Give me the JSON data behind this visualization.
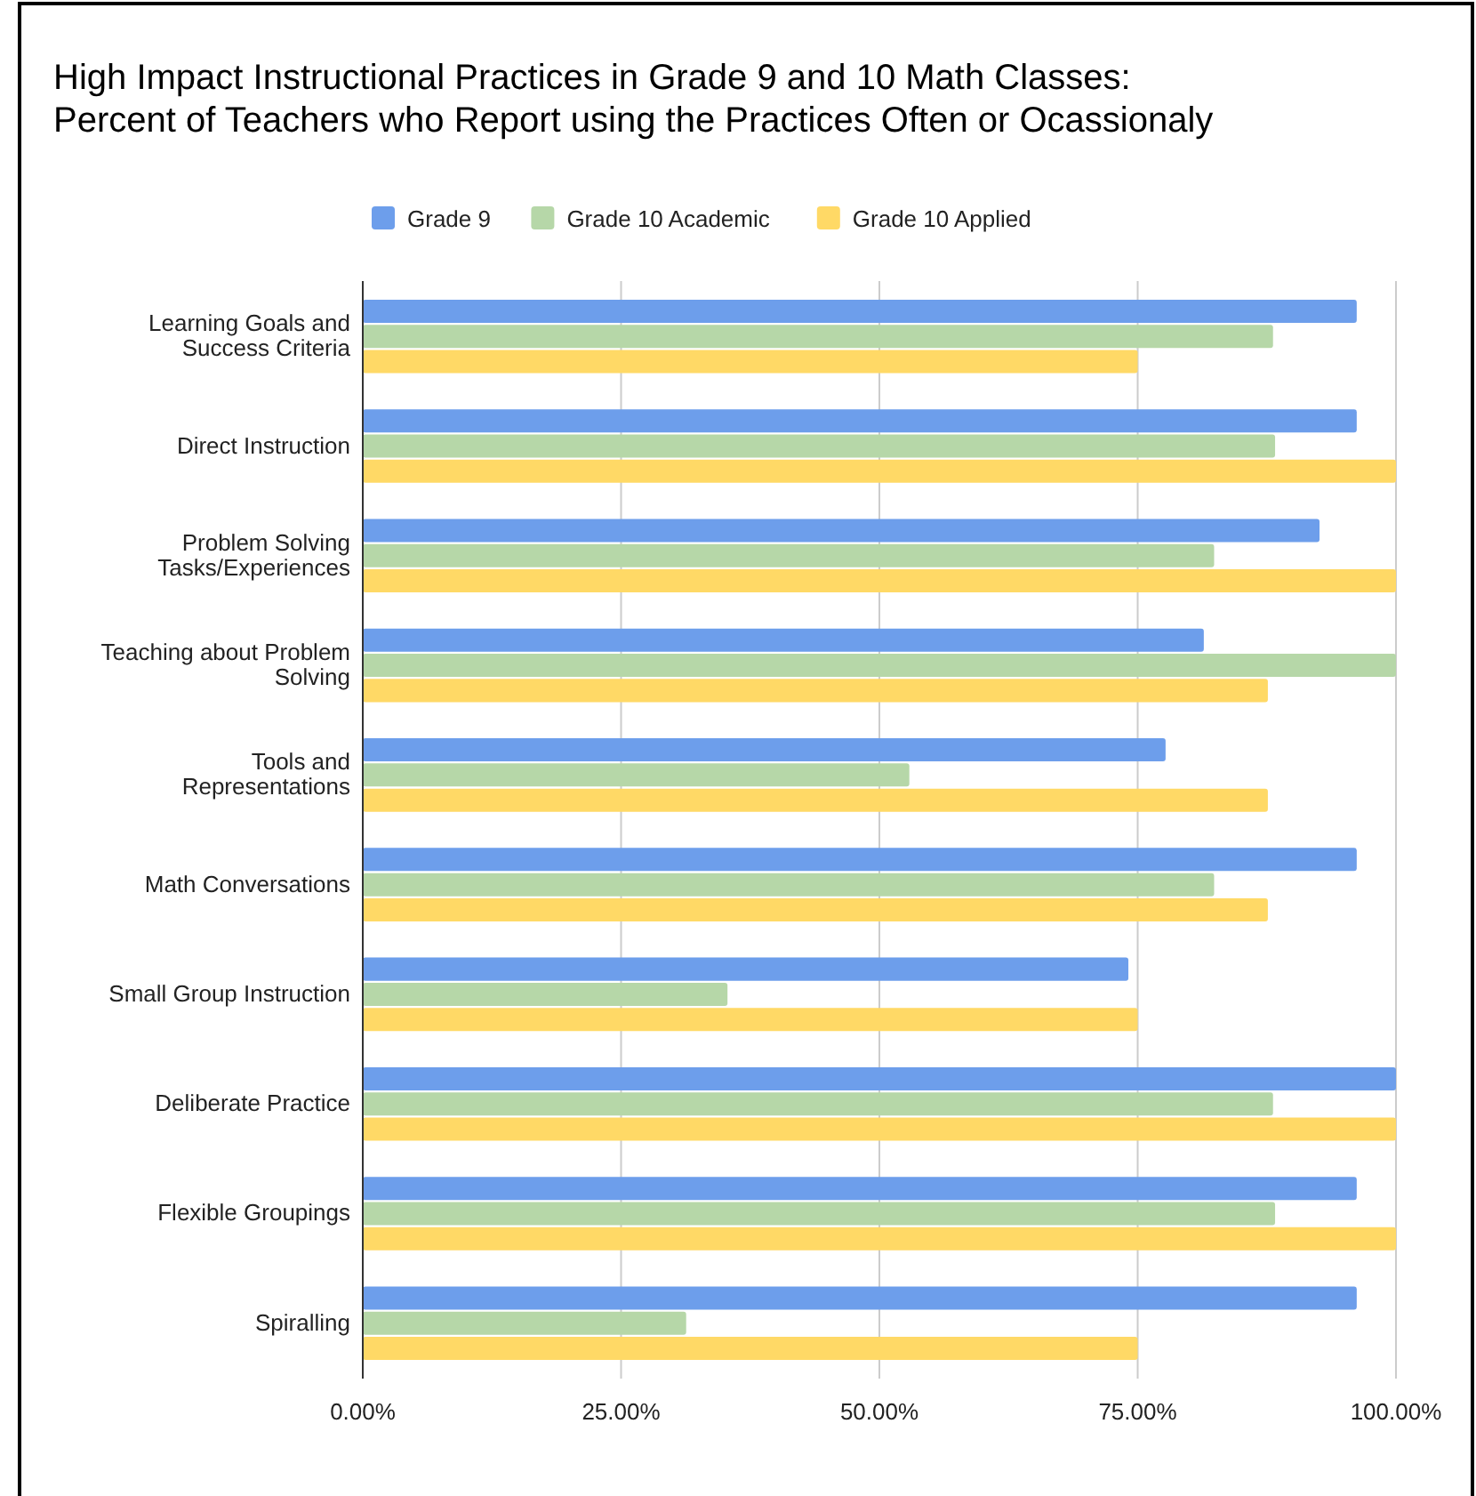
{
  "chart_data": {
    "type": "bar",
    "orientation": "horizontal",
    "title": "High Impact Instructional Practices in Grade 9 and 10 Math Classes:\nPercent of Teachers who Report using the Practices Often or Ocassionaly",
    "categories": [
      "Learning Goals and\nSuccess Criteria",
      "Direct Instruction",
      "Problem Solving\nTasks/Experiences",
      "Teaching about Problem\nSolving",
      "Tools and\nRepresentations",
      "Math Conversations",
      "Small Group Instruction",
      "Deliberate Practice",
      "Flexible Groupings",
      "Spiralling"
    ],
    "series": [
      {
        "name": "Grade 9",
        "color": "#6d9eeb",
        "values": [
          96.2,
          96.2,
          92.6,
          81.4,
          77.7,
          96.2,
          74.1,
          100,
          96.2,
          96.2
        ]
      },
      {
        "name": "Grade 10 Academic",
        "color": "#b6d7a8",
        "values": [
          88.1,
          88.3,
          82.4,
          100,
          52.9,
          82.4,
          35.3,
          88.1,
          88.3,
          31.3
        ]
      },
      {
        "name": "Grade 10 Applied",
        "color": "#ffd966",
        "values": [
          75,
          100,
          100,
          87.6,
          87.6,
          87.6,
          75,
          100,
          100,
          75
        ]
      }
    ],
    "xlim": [
      0,
      100
    ],
    "xticks": [
      {
        "value": 0,
        "label": "0.00%"
      },
      {
        "value": 25,
        "label": "25.00%"
      },
      {
        "value": 50,
        "label": "50.00%"
      },
      {
        "value": 75,
        "label": "75.00%"
      },
      {
        "value": 100,
        "label": "100.00%"
      }
    ],
    "grid": "x",
    "legend": "top"
  }
}
